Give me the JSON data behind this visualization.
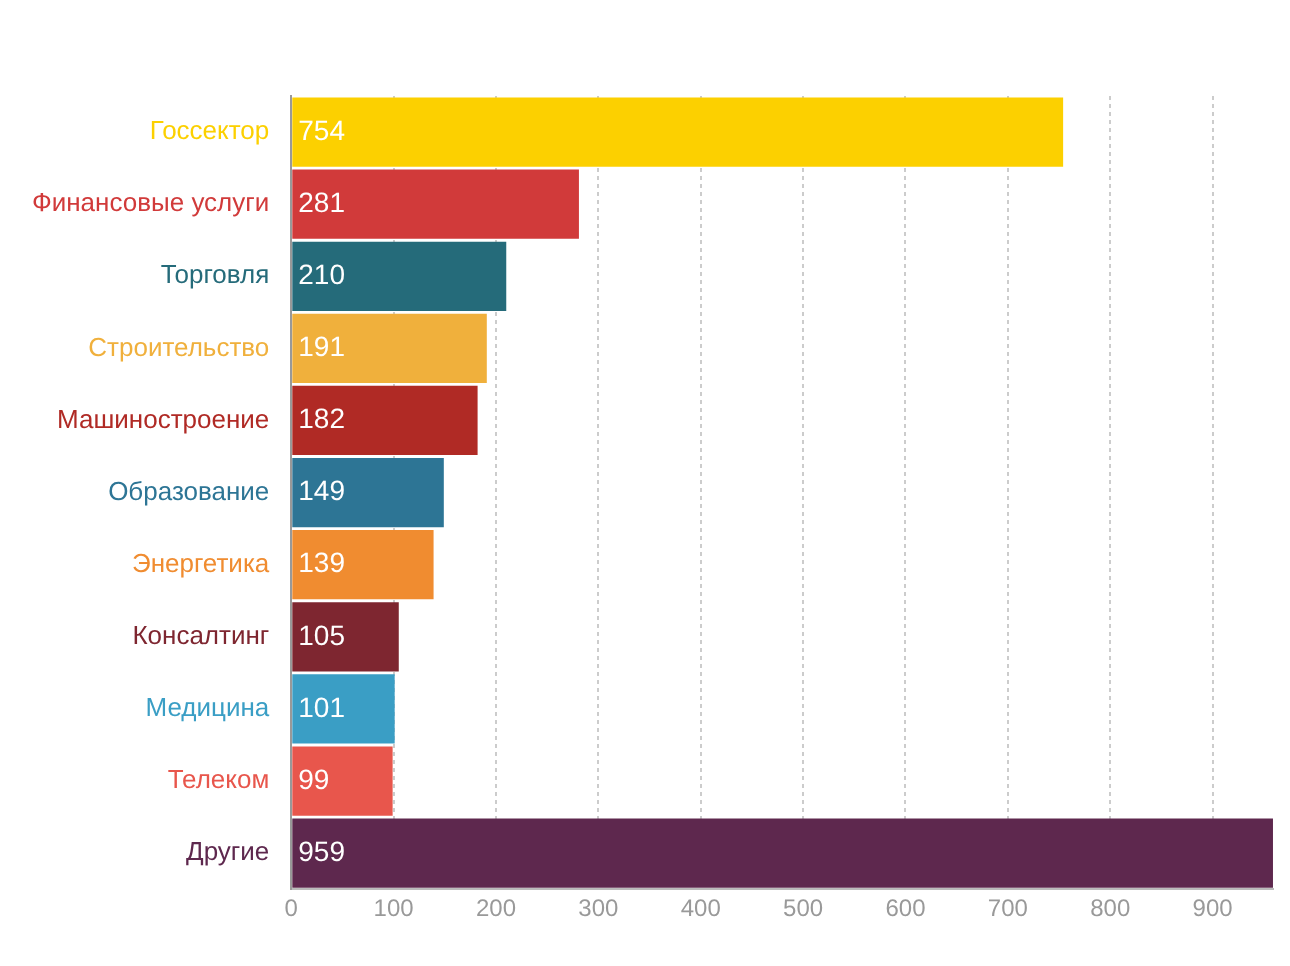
{
  "chart_data": {
    "type": "bar",
    "orientation": "horizontal",
    "categories": [
      "Госсектор",
      "Финансовые услуги",
      "Торговля",
      "Строительство",
      "Машиностроение",
      "Образование",
      "Энергетика",
      "Консалтинг",
      "Медицина",
      "Телеком",
      "Другие"
    ],
    "values": [
      754,
      281,
      210,
      191,
      182,
      149,
      139,
      105,
      101,
      99,
      959
    ],
    "colors": [
      "#fcd000",
      "#d13a3a",
      "#256b7a",
      "#f0b03c",
      "#b02a25",
      "#2d7595",
      "#f08c30",
      "#7e2630",
      "#3a9ec5",
      "#e8564c",
      "#5e284e"
    ],
    "xlim": [
      0,
      960
    ],
    "xticks": [
      0,
      100,
      200,
      300,
      400,
      500,
      600,
      700,
      800,
      900
    ],
    "grid": "x",
    "data_labels": true
  }
}
